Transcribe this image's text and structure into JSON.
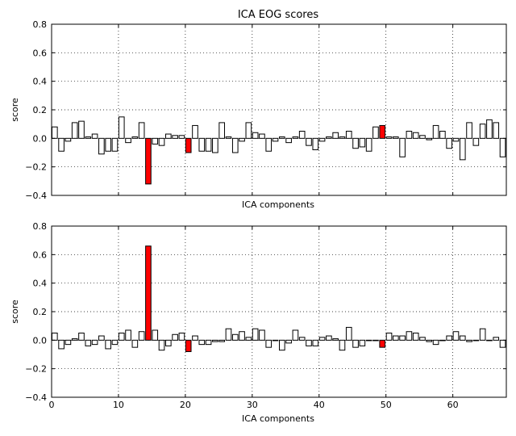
{
  "title": "ICA EOG scores",
  "colors": {
    "normal": "#ffffff",
    "highlight": "#ff0000",
    "edge": "#000000"
  },
  "chart_data": [
    {
      "type": "bar",
      "xlabel": "ICA components",
      "ylabel": "score",
      "xlim": [
        0,
        68
      ],
      "ylim": [
        -0.4,
        0.8
      ],
      "yticks": [
        "0.8",
        "0.6",
        "0.4",
        "0.2",
        "0.0",
        "−0.2",
        "−0.4"
      ],
      "ytick_values": [
        0.8,
        0.6,
        0.4,
        0.2,
        0.0,
        -0.2,
        -0.4
      ],
      "xticks": [],
      "xtick_values": [
        0,
        10,
        20,
        30,
        40,
        50,
        60
      ],
      "grid": true,
      "highlighted": [
        14,
        20,
        49
      ],
      "values": [
        0.08,
        -0.09,
        -0.02,
        0.11,
        0.12,
        0.01,
        0.03,
        -0.11,
        -0.09,
        -0.09,
        0.15,
        -0.03,
        0.01,
        0.11,
        -0.32,
        -0.04,
        -0.05,
        0.03,
        0.02,
        0.02,
        -0.1,
        0.09,
        -0.09,
        -0.09,
        -0.1,
        0.11,
        0.01,
        -0.1,
        -0.02,
        0.11,
        0.04,
        0.03,
        -0.09,
        -0.02,
        0.01,
        -0.03,
        0.01,
        0.05,
        -0.05,
        -0.08,
        -0.02,
        0.01,
        0.04,
        0.01,
        0.05,
        -0.07,
        -0.06,
        -0.09,
        0.08,
        0.09,
        0.01,
        0.01,
        -0.13,
        0.05,
        0.04,
        0.02,
        -0.01,
        0.09,
        0.05,
        -0.07,
        -0.02,
        -0.15,
        0.11,
        -0.05,
        0.1,
        0.13,
        0.11,
        -0.13
      ]
    },
    {
      "type": "bar",
      "xlabel": "ICA components",
      "ylabel": "score",
      "xlim": [
        0,
        68
      ],
      "ylim": [
        -0.4,
        0.8
      ],
      "yticks": [
        "0.8",
        "0.6",
        "0.4",
        "0.2",
        "0.0",
        "−0.2",
        "−0.4"
      ],
      "ytick_values": [
        0.8,
        0.6,
        0.4,
        0.2,
        0.0,
        -0.2,
        -0.4
      ],
      "xticks": [
        "0",
        "10",
        "20",
        "30",
        "40",
        "50",
        "60"
      ],
      "xtick_values": [
        0,
        10,
        20,
        30,
        40,
        50,
        60
      ],
      "grid": true,
      "highlighted": [
        14,
        20,
        49
      ],
      "values": [
        0.05,
        -0.06,
        -0.03,
        0.01,
        0.05,
        -0.04,
        -0.03,
        0.03,
        -0.06,
        -0.03,
        0.05,
        0.07,
        -0.05,
        0.06,
        0.66,
        0.07,
        -0.07,
        -0.04,
        0.04,
        0.05,
        -0.08,
        0.03,
        -0.03,
        -0.03,
        -0.01,
        -0.01,
        0.08,
        0.04,
        0.06,
        0.02,
        0.08,
        0.07,
        -0.05,
        0.0,
        -0.07,
        -0.02,
        0.07,
        0.02,
        -0.04,
        -0.04,
        0.02,
        0.03,
        0.01,
        -0.07,
        0.09,
        -0.05,
        -0.04,
        0.0,
        0.0,
        -0.05,
        0.05,
        0.03,
        0.03,
        0.06,
        0.05,
        0.02,
        -0.01,
        -0.03,
        0.0,
        0.03,
        0.06,
        0.03,
        -0.01,
        0.0,
        0.08,
        0.0,
        0.02,
        -0.05
      ]
    }
  ]
}
